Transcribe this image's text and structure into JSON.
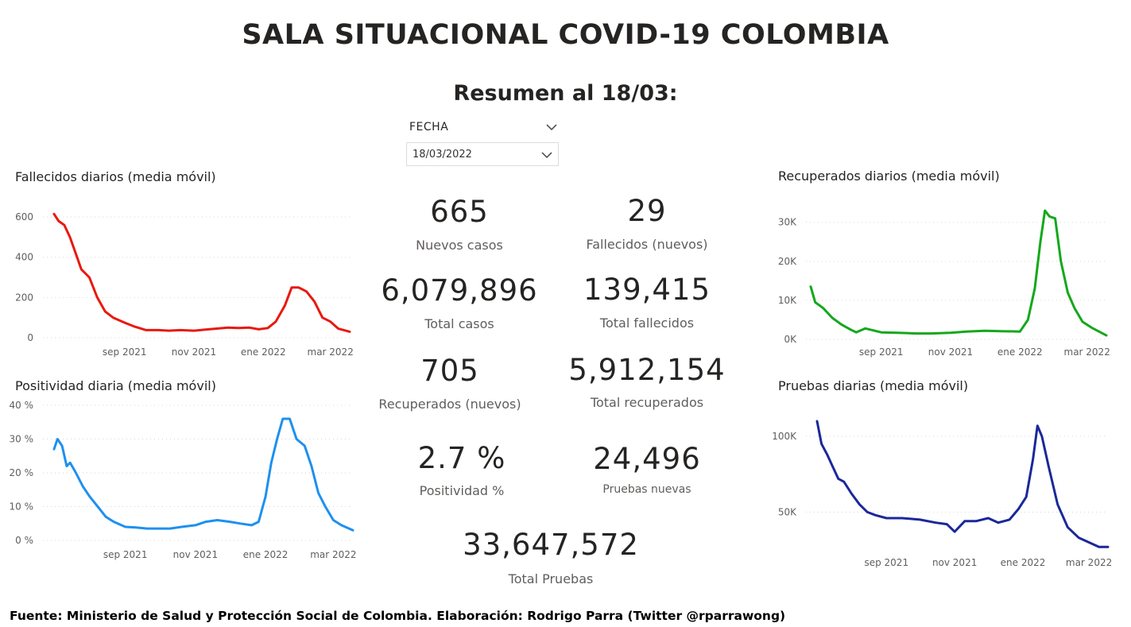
{
  "header": {
    "title": "SALA SITUACIONAL COVID-19 COLOMBIA",
    "subtitle": "Resumen al 18/03:"
  },
  "slicer": {
    "label": "FECHA",
    "selected": "18/03/2022"
  },
  "kpis": [
    {
      "value": "665",
      "label": "Nuevos casos"
    },
    {
      "value": "29",
      "label": "Fallecidos (nuevos)"
    },
    {
      "value": "6,079,896",
      "label": "Total casos"
    },
    {
      "value": "139,415",
      "label": "Total fallecidos"
    },
    {
      "value": "705",
      "label": "Recuperados (nuevos)"
    },
    {
      "value": "5,912,154",
      "label": "Total recuperados"
    },
    {
      "value": "2.7 %",
      "label": "Positividad %"
    },
    {
      "value": "24,496",
      "label": "Pruebas nuevas"
    },
    {
      "value": "33,647,572",
      "label": "Total Pruebas"
    }
  ],
  "footer": "Fuente: Ministerio de Salud y Protección Social de Colombia. Elaboración: Rodrigo Parra (Twitter @rparrawong)",
  "chart_data": [
    {
      "id": "fallecidos",
      "type": "line",
      "title": "Fallecidos diarios (media móvil)",
      "color": "#e8190f",
      "x_range": [
        "2021-07-01",
        "2022-03-18"
      ],
      "ylim": [
        0,
        620
      ],
      "y_ticks": [
        0,
        200,
        400,
        600
      ],
      "y_tick_labels": [
        "0",
        "200",
        "400",
        "600"
      ],
      "x_ticks": [
        "2021-09-01",
        "2021-11-01",
        "2022-01-01",
        "2022-03-01"
      ],
      "x_tick_labels": [
        "sep 2021",
        "nov 2021",
        "ene 2022",
        "mar 2022"
      ],
      "grid": true,
      "x": [
        "2021-07-01",
        "2021-07-05",
        "2021-07-10",
        "2021-07-15",
        "2021-07-20",
        "2021-07-25",
        "2021-08-01",
        "2021-08-08",
        "2021-08-15",
        "2021-08-22",
        "2021-09-01",
        "2021-09-10",
        "2021-09-20",
        "2021-10-01",
        "2021-10-10",
        "2021-10-20",
        "2021-11-01",
        "2021-11-10",
        "2021-11-20",
        "2021-12-01",
        "2021-12-10",
        "2021-12-20",
        "2021-12-28",
        "2022-01-05",
        "2022-01-12",
        "2022-01-20",
        "2022-01-26",
        "2022-02-01",
        "2022-02-08",
        "2022-02-15",
        "2022-02-22",
        "2022-03-01",
        "2022-03-08",
        "2022-03-18"
      ],
      "y": [
        615,
        580,
        560,
        500,
        420,
        340,
        300,
        200,
        130,
        100,
        75,
        55,
        38,
        38,
        35,
        38,
        35,
        40,
        45,
        50,
        48,
        50,
        42,
        48,
        80,
        160,
        250,
        250,
        230,
        180,
        100,
        80,
        45,
        30
      ]
    },
    {
      "id": "positividad",
      "type": "line",
      "title": "Positividad diaria (media móvil)",
      "color": "#1e90ef",
      "x_range": [
        "2021-07-01",
        "2022-03-18"
      ],
      "ylim": [
        0,
        40
      ],
      "y_ticks": [
        0,
        10,
        20,
        30,
        40
      ],
      "y_tick_labels": [
        "0 %",
        "10 %",
        "20 %",
        "30 %",
        "40 %"
      ],
      "x_ticks": [
        "2021-09-01",
        "2021-11-01",
        "2022-01-01",
        "2022-03-01"
      ],
      "x_tick_labels": [
        "sep 2021",
        "nov 2021",
        "ene 2022",
        "mar 2022"
      ],
      "grid": true,
      "x": [
        "2021-07-01",
        "2021-07-04",
        "2021-07-08",
        "2021-07-12",
        "2021-07-15",
        "2021-07-20",
        "2021-07-26",
        "2021-08-01",
        "2021-08-08",
        "2021-08-15",
        "2021-08-22",
        "2021-09-01",
        "2021-09-10",
        "2021-09-20",
        "2021-10-01",
        "2021-10-10",
        "2021-10-20",
        "2021-11-01",
        "2021-11-10",
        "2021-11-20",
        "2021-12-01",
        "2021-12-10",
        "2021-12-20",
        "2021-12-26",
        "2022-01-01",
        "2022-01-06",
        "2022-01-11",
        "2022-01-16",
        "2022-01-22",
        "2022-01-28",
        "2022-02-04",
        "2022-02-10",
        "2022-02-16",
        "2022-02-22",
        "2022-03-01",
        "2022-03-08",
        "2022-03-18"
      ],
      "y": [
        27,
        30,
        28,
        22,
        23,
        20,
        16,
        13,
        10,
        7,
        5.5,
        4,
        3.8,
        3.5,
        3.5,
        3.5,
        4,
        4.5,
        5.5,
        6,
        5.5,
        5,
        4.5,
        5.5,
        13,
        23,
        30,
        36,
        36,
        30,
        28,
        22,
        14,
        10,
        6,
        4.5,
        3
      ]
    },
    {
      "id": "recuperados",
      "type": "line",
      "title": "Recuperados diarios (media móvil)",
      "color": "#13a81b",
      "x_range": [
        "2021-07-01",
        "2022-03-18"
      ],
      "ylim": [
        0,
        33000
      ],
      "y_ticks": [
        0,
        10000,
        20000,
        30000
      ],
      "y_tick_labels": [
        "0K",
        "10K",
        "20K",
        "30K"
      ],
      "x_ticks": [
        "2021-09-01",
        "2021-11-01",
        "2022-01-01",
        "2022-03-01"
      ],
      "x_tick_labels": [
        "sep 2021",
        "nov 2021",
        "ene 2022",
        "mar 2022"
      ],
      "grid": true,
      "x": [
        "2021-07-01",
        "2021-07-05",
        "2021-07-12",
        "2021-07-20",
        "2021-07-28",
        "2021-08-05",
        "2021-08-10",
        "2021-08-18",
        "2021-09-01",
        "2021-09-15",
        "2021-10-01",
        "2021-10-15",
        "2021-11-01",
        "2021-11-15",
        "2021-12-01",
        "2021-12-15",
        "2022-01-01",
        "2022-01-08",
        "2022-01-14",
        "2022-01-19",
        "2022-01-23",
        "2022-01-27",
        "2022-02-01",
        "2022-02-06",
        "2022-02-12",
        "2022-02-18",
        "2022-02-25",
        "2022-03-05",
        "2022-03-18"
      ],
      "y": [
        13500,
        9500,
        8000,
        5500,
        3800,
        2500,
        1800,
        2800,
        1800,
        1700,
        1500,
        1500,
        1700,
        2000,
        2200,
        2100,
        2000,
        5000,
        13000,
        25000,
        33000,
        31500,
        31000,
        20000,
        12000,
        8000,
        4500,
        3000,
        1000
      ]
    },
    {
      "id": "pruebas",
      "type": "line",
      "title": "Pruebas diarias (media móvil)",
      "color": "#1a2899",
      "x_range": [
        "2021-07-01",
        "2022-03-18"
      ],
      "ylim": [
        25000,
        110000
      ],
      "y_ticks": [
        50000,
        100000
      ],
      "y_tick_labels": [
        "50K",
        "100K"
      ],
      "x_ticks": [
        "2021-09-01",
        "2021-11-01",
        "2022-01-01",
        "2022-03-01"
      ],
      "x_tick_labels": [
        "sep 2021",
        "nov 2021",
        "ene 2022",
        "mar 2022"
      ],
      "grid": true,
      "x": [
        "2021-07-01",
        "2021-07-05",
        "2021-07-10",
        "2021-07-15",
        "2021-07-20",
        "2021-07-25",
        "2021-08-01",
        "2021-08-08",
        "2021-08-15",
        "2021-08-22",
        "2021-09-01",
        "2021-09-15",
        "2021-10-01",
        "2021-10-15",
        "2021-10-25",
        "2021-11-01",
        "2021-11-10",
        "2021-11-20",
        "2021-12-01",
        "2021-12-10",
        "2021-12-20",
        "2021-12-28",
        "2022-01-04",
        "2022-01-10",
        "2022-01-14",
        "2022-01-18",
        "2022-01-24",
        "2022-02-01",
        "2022-02-10",
        "2022-02-20",
        "2022-03-01",
        "2022-03-10",
        "2022-03-18"
      ],
      "y": [
        110000,
        95000,
        88000,
        80000,
        72000,
        70000,
        62000,
        55000,
        50000,
        48000,
        46000,
        46000,
        45000,
        43000,
        42000,
        37000,
        44000,
        44000,
        46000,
        43000,
        45000,
        52000,
        60000,
        85000,
        107000,
        100000,
        80000,
        55000,
        40000,
        33000,
        30000,
        27000,
        27000
      ]
    }
  ]
}
